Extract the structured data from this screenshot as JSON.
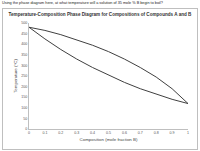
{
  "question": "Using the phase diagram here, at what temperature will a solution of 35 mole % B begin to boil?",
  "chart_data": {
    "type": "line",
    "title": "Temperature-Composition Phase Diagram for Compositions of Compounds A and B",
    "x_label": "Composition (mole fraction B)",
    "y_label": "Temperature (°C)",
    "x": [
      0,
      0.1,
      0.2,
      0.3,
      0.4,
      0.5,
      0.6,
      0.7,
      0.8,
      0.9,
      1
    ],
    "series": [
      {
        "color": "#404040",
        "values": [
          480,
          465,
          445,
          420,
          395,
          365,
          330,
          290,
          245,
          190,
          120
        ]
      },
      {
        "color": "#404040",
        "values": [
          480,
          425,
          375,
          330,
          290,
          255,
          220,
          190,
          165,
          140,
          120
        ]
      }
    ],
    "xlim": [
      0,
      1
    ],
    "xticks": [
      0,
      0.1,
      0.2,
      0.3,
      0.4,
      0.5,
      0.6,
      0.7,
      0.8,
      0.9,
      1
    ],
    "ylim": [
      0,
      500
    ],
    "yticks": [
      0,
      50,
      100,
      150,
      200,
      250,
      300,
      350,
      400,
      450,
      500
    ],
    "grid": false
  }
}
